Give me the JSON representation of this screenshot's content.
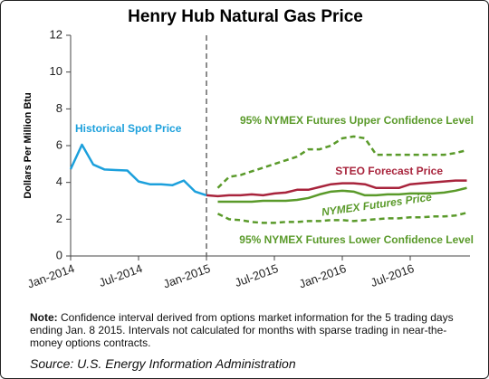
{
  "chart_data": {
    "type": "line",
    "title": "Henry Hub Natural Gas Price",
    "y_label": "Dollars Per Million Btu",
    "categories": [
      "Jan-2014",
      null,
      null,
      null,
      null,
      null,
      "Jul-2014",
      null,
      null,
      null,
      null,
      null,
      "Jan-2015",
      null,
      null,
      null,
      null,
      null,
      "Jul-2015",
      null,
      null,
      null,
      null,
      null,
      "Jan-2016",
      null,
      null,
      null,
      null,
      null,
      "Jul-2016",
      null,
      null,
      null,
      null,
      null
    ],
    "divider": "Jan-2015",
    "ylim": [
      0,
      12
    ],
    "yticks": [
      0,
      2,
      4,
      6,
      8,
      10,
      12
    ],
    "series": [
      {
        "name": "Historical Spot Price",
        "color": "#1ca0dc",
        "dash": false,
        "values": [
          4.72,
          6.05,
          4.97,
          4.7,
          4.67,
          4.65,
          4.05,
          3.9,
          3.9,
          3.85,
          4.1,
          3.5,
          3.3,
          null,
          null,
          null,
          null,
          null,
          null,
          null,
          null,
          null,
          null,
          null,
          null,
          null,
          null,
          null,
          null,
          null,
          null,
          null,
          null,
          null,
          null,
          null
        ]
      },
      {
        "name": "95% NYMEX Futures Upper Confidence Level",
        "color": "#5a9a2a",
        "dash": true,
        "values": [
          null,
          null,
          null,
          null,
          null,
          null,
          null,
          null,
          null,
          null,
          null,
          null,
          null,
          3.7,
          4.3,
          4.4,
          4.6,
          4.8,
          5.0,
          5.2,
          5.4,
          5.8,
          5.8,
          6.0,
          6.4,
          6.5,
          6.4,
          5.5,
          5.5,
          5.5,
          5.5,
          5.5,
          5.5,
          5.5,
          5.6,
          5.75
        ]
      },
      {
        "name": "STEO Forecast Price",
        "color": "#a8243c",
        "dash": false,
        "values": [
          null,
          null,
          null,
          null,
          null,
          null,
          null,
          null,
          null,
          null,
          null,
          null,
          3.3,
          3.25,
          3.3,
          3.3,
          3.35,
          3.3,
          3.4,
          3.45,
          3.6,
          3.6,
          3.75,
          3.9,
          3.95,
          3.95,
          3.9,
          3.7,
          3.7,
          3.7,
          3.9,
          3.95,
          4.0,
          4.05,
          4.1,
          4.1
        ]
      },
      {
        "name": "NYMEX Futures Price",
        "color": "#5a9a2a",
        "dash": false,
        "values": [
          null,
          null,
          null,
          null,
          null,
          null,
          null,
          null,
          null,
          null,
          null,
          null,
          null,
          2.95,
          2.95,
          2.95,
          2.95,
          3.0,
          3.0,
          3.0,
          3.05,
          3.15,
          3.35,
          3.5,
          3.55,
          3.5,
          3.3,
          3.3,
          3.35,
          3.35,
          3.4,
          3.4,
          3.4,
          3.45,
          3.55,
          3.7
        ]
      },
      {
        "name": "95% NYMEX Futures Lower Confidence Level",
        "color": "#5a9a2a",
        "dash": true,
        "values": [
          null,
          null,
          null,
          null,
          null,
          null,
          null,
          null,
          null,
          null,
          null,
          null,
          null,
          2.3,
          2.0,
          1.95,
          1.85,
          1.8,
          1.8,
          1.85,
          1.85,
          1.9,
          1.9,
          1.95,
          1.95,
          1.9,
          1.95,
          2.0,
          2.05,
          2.05,
          2.1,
          2.1,
          2.15,
          2.15,
          2.2,
          2.35
        ]
      }
    ],
    "note_label": "Note:",
    "note": "Confidence interval derived from options market information for the 5 trading days ending Jan. 8 2015. Intervals not calculated for months with sparse trading in near-the-money options contracts.",
    "source": "Source: U.S. Energy Information Administration"
  }
}
